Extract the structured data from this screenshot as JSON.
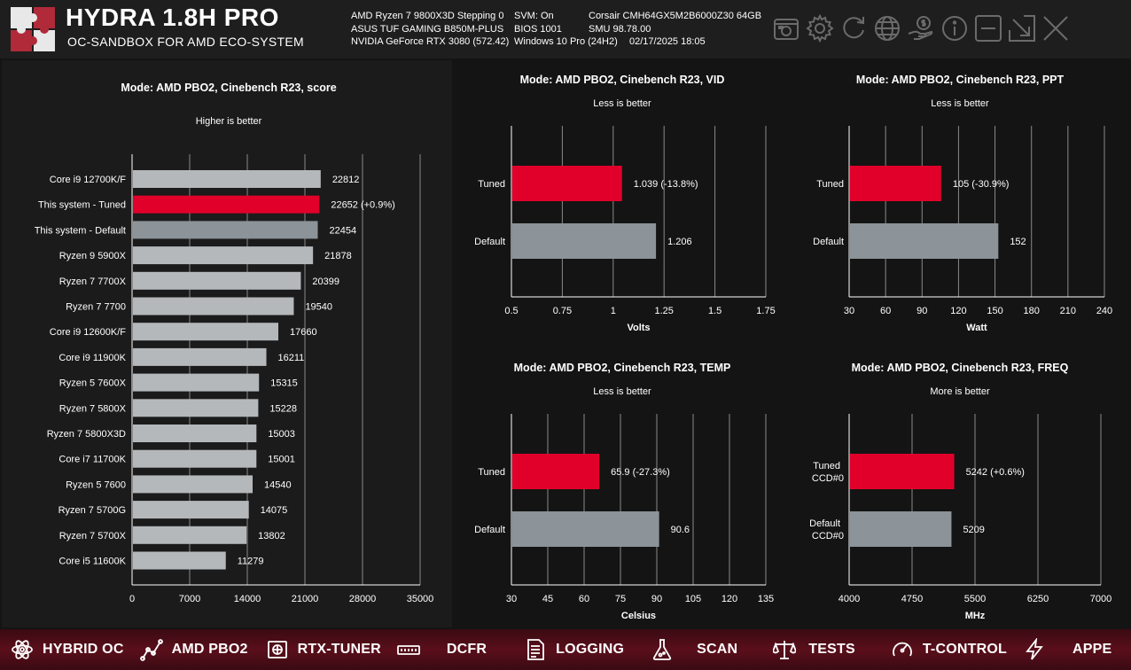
{
  "app": {
    "title": "HYDRA 1.8H PRO",
    "subtitle": "OC-SANDBOX FOR AMD ECO-SYSTEM"
  },
  "sysinfo": {
    "rows": [
      [
        "AMD Ryzen 7 9800X3D Stepping 0",
        "SVM: On",
        "Corsair CMH64GX5M2B6000Z30 64GB"
      ],
      [
        "ASUS TUF GAMING B850M-PLUS",
        "BIOS 1001",
        "SMU 98.78.00"
      ],
      [
        "NVIDIA GeForce RTX 3080 (572.42)",
        "Windows 10 Pro (24H2)",
        "02/17/2025 18:05"
      ]
    ]
  },
  "header_icons": [
    "screenshot-icon",
    "gear-icon",
    "refresh-icon",
    "globe-icon",
    "donate-icon",
    "info-icon",
    "minimize-icon",
    "collapse-icon",
    "close-icon"
  ],
  "nav": [
    {
      "label": "HYBRID OC",
      "icon": "atom-icon"
    },
    {
      "label": "AMD PBO2",
      "icon": "graph-icon"
    },
    {
      "label": "RTX-TUNER",
      "icon": "gpu-icon"
    },
    {
      "label": "DCFR",
      "icon": "ram-icon"
    },
    {
      "label": "LOGGING",
      "icon": "document-icon"
    },
    {
      "label": "SCAN",
      "icon": "flask-icon"
    },
    {
      "label": "TESTS",
      "icon": "scales-icon"
    },
    {
      "label": "T-CONTROL",
      "icon": "gauge-icon"
    },
    {
      "label": "APPE",
      "icon": "bolt-icon"
    }
  ],
  "colors": {
    "tuned": "#e0002a",
    "default": "#8c9399",
    "bar": "#b4b8bb",
    "grid": "#8a8a8a"
  },
  "chart_data": [
    {
      "type": "bar",
      "orientation": "horizontal",
      "title": "Mode: AMD PBO2, Cinebench R23, score",
      "subtitle": "Higher is better",
      "xlabel": "",
      "xlim": [
        0,
        35000
      ],
      "xticks": [
        "0",
        "7000",
        "14000",
        "21000",
        "28000",
        "35000"
      ],
      "categories": [
        "Core i9 12700K/F",
        "This system - Tuned",
        "This system - Default",
        "Ryzen 9 5900X",
        "Ryzen 7 7700X",
        "Ryzen 7 7700",
        "Core i9 12600K/F",
        "Core i9 11900K",
        "Ryzen 5 7600X",
        "Ryzen 7 5800X",
        "Ryzen 7 5800X3D",
        "Core i7 11700K",
        "Ryzen 5 7600",
        "Ryzen 7 5700G",
        "Ryzen 7 5700X",
        "Core i5 11600K"
      ],
      "values": [
        22812,
        22652,
        22454,
        21878,
        20399,
        19540,
        17660,
        16211,
        15315,
        15228,
        15003,
        15001,
        14540,
        14075,
        13802,
        11279
      ],
      "labels": [
        "22812",
        "22652 (+0.9%)",
        "22454",
        "21878",
        "20399",
        "19540",
        "17660",
        "16211",
        "15315",
        "15228",
        "15003",
        "15001",
        "14540",
        "14075",
        "13802",
        "11279"
      ],
      "kinds": [
        "other",
        "tuned",
        "default",
        "other",
        "other",
        "other",
        "other",
        "other",
        "other",
        "other",
        "other",
        "other",
        "other",
        "other",
        "other",
        "other"
      ]
    },
    {
      "type": "bar",
      "orientation": "horizontal",
      "title": "Mode: AMD PBO2, Cinebench R23, VID",
      "subtitle": "Less is better",
      "xlabel": "Volts",
      "xlim": [
        0.5,
        1.75
      ],
      "xticks": [
        "0.5",
        "0.75",
        "1",
        "1.25",
        "1.5",
        "1.75"
      ],
      "categories": [
        "Tuned",
        "Default"
      ],
      "values": [
        1.039,
        1.206
      ],
      "labels": [
        "1.039 (-13.8%)",
        "1.206"
      ],
      "kinds": [
        "tuned",
        "default"
      ]
    },
    {
      "type": "bar",
      "orientation": "horizontal",
      "title": "Mode: AMD PBO2, Cinebench R23, PPT",
      "subtitle": "Less is better",
      "xlabel": "Watt",
      "xlim": [
        30,
        240
      ],
      "xticks": [
        "30",
        "60",
        "90",
        "120",
        "150",
        "180",
        "210",
        "240"
      ],
      "categories": [
        "Tuned",
        "Default"
      ],
      "values": [
        105,
        152
      ],
      "labels": [
        "105 (-30.9%)",
        "152"
      ],
      "kinds": [
        "tuned",
        "default"
      ]
    },
    {
      "type": "bar",
      "orientation": "horizontal",
      "title": "Mode: AMD PBO2, Cinebench R23, TEMP",
      "subtitle": "Less is better",
      "xlabel": "Celsius",
      "xlim": [
        30,
        135
      ],
      "xticks": [
        "30",
        "45",
        "60",
        "75",
        "90",
        "105",
        "120",
        "135"
      ],
      "categories": [
        "Tuned",
        "Default"
      ],
      "values": [
        65.9,
        90.6
      ],
      "labels": [
        "65.9 (-27.3%)",
        "90.6"
      ],
      "kinds": [
        "tuned",
        "default"
      ]
    },
    {
      "type": "bar",
      "orientation": "horizontal",
      "title": "Mode: AMD PBO2, Cinebench R23, FREQ",
      "subtitle": "More is better",
      "xlabel": "MHz",
      "xlim": [
        4000,
        7000
      ],
      "xticks": [
        "4000",
        "4750",
        "5500",
        "6250",
        "7000"
      ],
      "categories": [
        "Tuned\nCCD#0",
        "Default\nCCD#0"
      ],
      "values": [
        5242,
        5209
      ],
      "labels": [
        "5242 (+0.6%)",
        "5209"
      ],
      "kinds": [
        "tuned",
        "default"
      ]
    }
  ]
}
